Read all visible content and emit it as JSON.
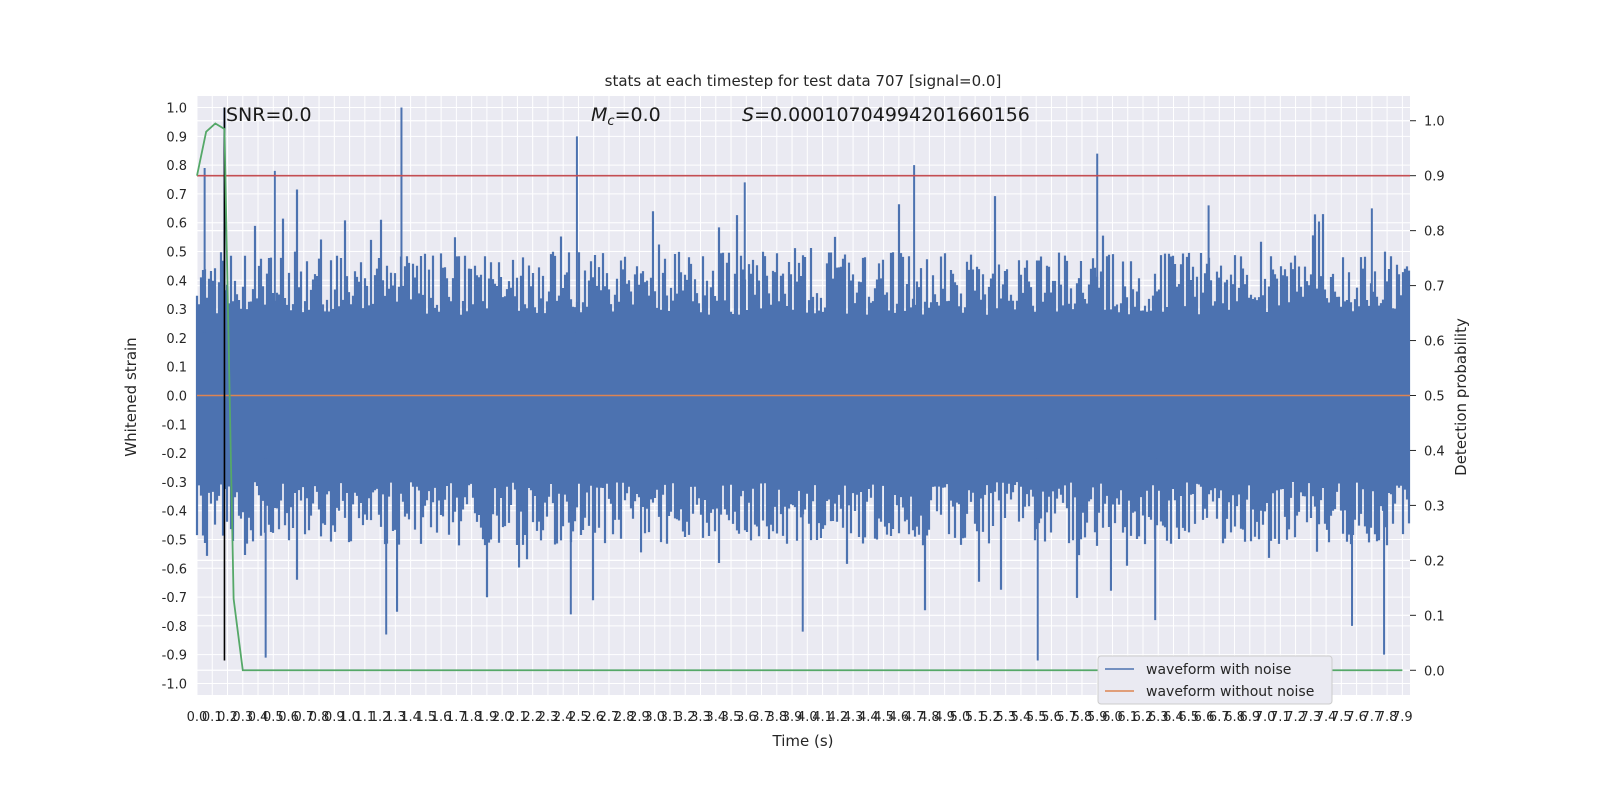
{
  "chart_data": {
    "type": "line",
    "title": "stats at each timestep for test data 707 [signal=0.0]",
    "xlabel": "Time (s)",
    "ylabel": "Whitened strain",
    "y2label": "Detection probability",
    "xlim": [
      0.0,
      7.95
    ],
    "ylim": [
      -1.04,
      1.04
    ],
    "y2lim": [
      -0.045,
      1.045
    ],
    "x_ticks": [
      "0.0",
      "0.1",
      "0.2",
      "0.3",
      "0.4",
      "0.5",
      "0.6",
      "0.7",
      "0.8",
      "0.9",
      "1.0",
      "1.1",
      "1.2",
      "1.3",
      "1.4",
      "1.5",
      "1.6",
      "1.7",
      "1.8",
      "1.9",
      "2.0",
      "2.1",
      "2.2",
      "2.3",
      "2.4",
      "2.5",
      "2.6",
      "2.7",
      "2.8",
      "2.9",
      "3.0",
      "3.1",
      "3.2",
      "3.3",
      "3.4",
      "3.5",
      "3.6",
      "3.7",
      "3.8",
      "3.9",
      "4.0",
      "4.1",
      "4.2",
      "4.3",
      "4.4",
      "4.5",
      "4.6",
      "4.7",
      "4.8",
      "4.9",
      "5.0",
      "5.1",
      "5.2",
      "5.3",
      "5.4",
      "5.5",
      "5.6",
      "5.7",
      "5.8",
      "5.9",
      "6.0",
      "6.1",
      "6.2",
      "6.3",
      "6.4",
      "6.5",
      "6.6",
      "6.7",
      "6.8",
      "6.9",
      "7.0",
      "7.1",
      "7.2",
      "7.3",
      "7.4",
      "7.5",
      "7.6",
      "7.7",
      "7.8",
      "7.9"
    ],
    "y_ticks": [
      "1.0",
      "0.9",
      "0.8",
      "0.7",
      "0.6",
      "0.5",
      "0.4",
      "0.3",
      "0.2",
      "0.1",
      "0.0",
      "-0.1",
      "-0.2",
      "-0.3",
      "-0.4",
      "-0.5",
      "-0.6",
      "-0.7",
      "-0.8",
      "-0.9",
      "-1.0"
    ],
    "y2_ticks": [
      "1.0",
      "0.9",
      "0.8",
      "0.7",
      "0.6",
      "0.5",
      "0.4",
      "0.3",
      "0.2",
      "0.1",
      "0.0"
    ],
    "grid": true,
    "legend_position": "bottom-right",
    "annotations": {
      "snr": "SNR=0.0",
      "mc": "=0.0",
      "mc_symbol": "M",
      "mc_sub": "c",
      "s": "=0.00010704994201660156",
      "s_symbol": "S"
    },
    "series": [
      {
        "name": "waveform with noise",
        "axis": "left",
        "color": "#4c72b0",
        "envelope": true,
        "peaks_max": [
          {
            "x": 0.18,
            "y": 1.0
          },
          {
            "x": 0.05,
            "y": 0.79
          },
          {
            "x": 0.51,
            "y": 0.78
          },
          {
            "x": 1.34,
            "y": 1.0
          },
          {
            "x": 2.49,
            "y": 0.9
          },
          {
            "x": 3.59,
            "y": 0.74
          },
          {
            "x": 4.7,
            "y": 0.8
          },
          {
            "x": 5.9,
            "y": 0.84
          },
          {
            "x": 6.63,
            "y": 0.66
          },
          {
            "x": 7.7,
            "y": 0.65
          }
        ],
        "peaks_min": [
          {
            "x": 0.45,
            "y": -0.91
          },
          {
            "x": 1.24,
            "y": -0.83
          },
          {
            "x": 2.45,
            "y": -0.76
          },
          {
            "x": 3.97,
            "y": -0.82
          },
          {
            "x": 5.51,
            "y": -0.92
          },
          {
            "x": 6.28,
            "y": -0.78
          },
          {
            "x": 7.57,
            "y": -0.8
          },
          {
            "x": 7.78,
            "y": -0.9
          }
        ]
      },
      {
        "name": "waveform without noise",
        "axis": "left",
        "color": "#dd8452",
        "x": [
          0.0,
          7.95
        ],
        "y": [
          0.0,
          0.0
        ]
      },
      {
        "axis": "right",
        "color": "#55a868",
        "x": [
          0.0,
          0.06,
          0.12,
          0.18,
          0.24,
          0.3,
          7.9
        ],
        "y": [
          0.9,
          0.98,
          0.995,
          0.985,
          0.13,
          0.0,
          0.0
        ]
      }
    ],
    "reference_lines": [
      {
        "axis": "right",
        "type": "horizontal",
        "value": 0.9,
        "color": "#c44e52"
      },
      {
        "axis": "left",
        "type": "vertical",
        "value": 0.18,
        "color": "#000000",
        "ymin": -0.92,
        "ymax": 1.0
      }
    ]
  }
}
